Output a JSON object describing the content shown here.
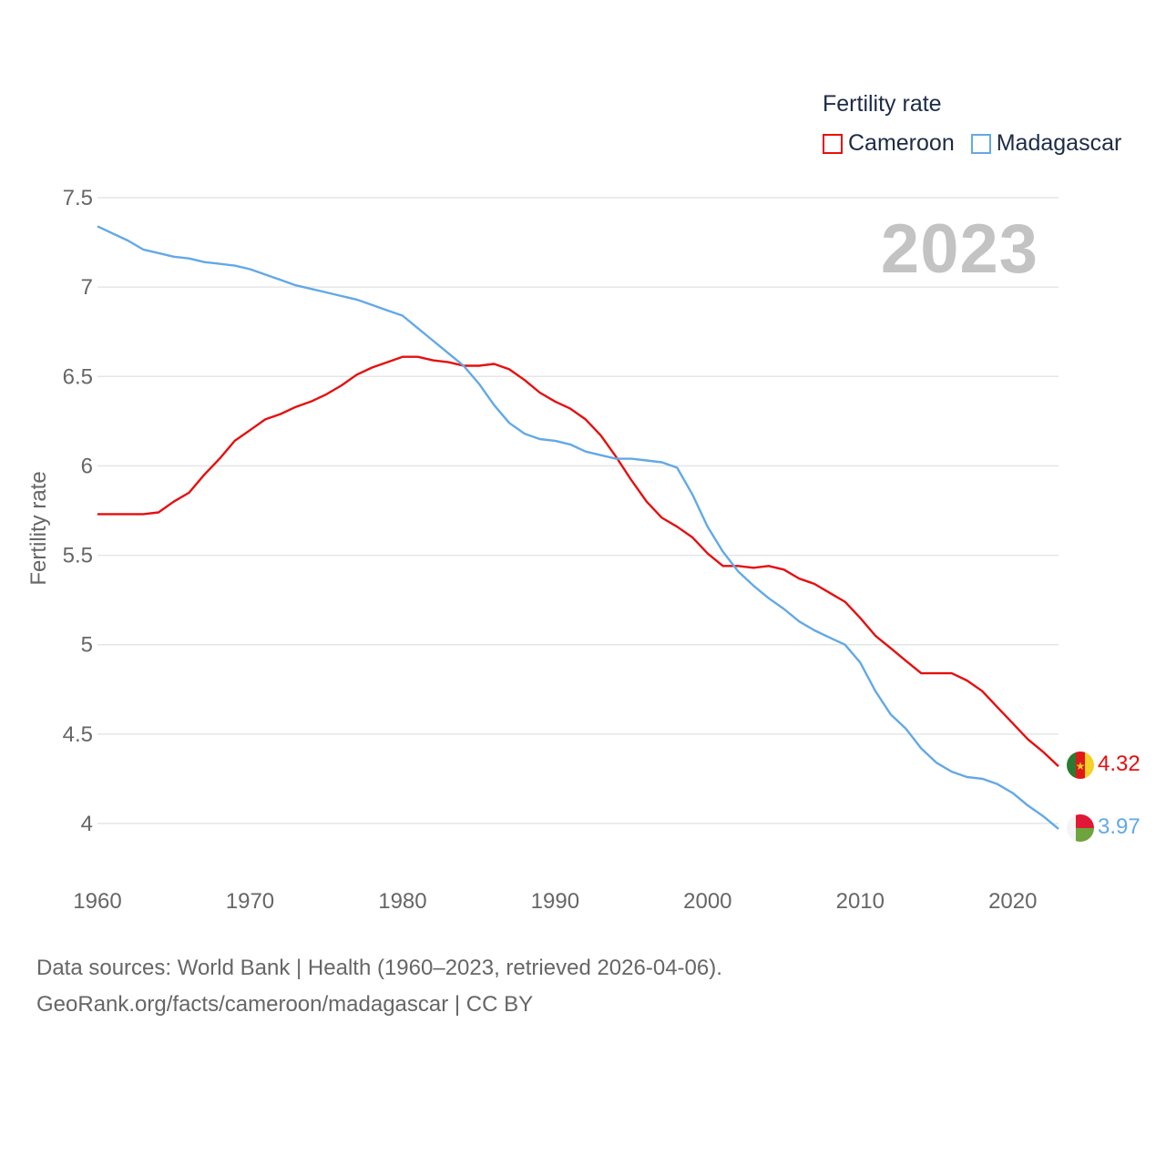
{
  "legend": {
    "title": "Fertility rate",
    "items": [
      {
        "label": "Cameroon",
        "color": "#e60f0f"
      },
      {
        "label": "Madagascar",
        "color": "#62a9e6"
      }
    ]
  },
  "year_label": "2023",
  "footer": {
    "line1": "Data sources: World Bank | Health (1960–2023, retrieved 2026-04-06).",
    "line2": "GeoRank.org/facts/cameroon/madagascar | CC BY"
  },
  "chart_data": {
    "type": "line",
    "title": "Fertility rate",
    "xlabel": "",
    "ylabel": "Fertility rate",
    "xlim": [
      1960,
      2023
    ],
    "ylim": [
      3.8,
      7.6
    ],
    "xticks": [
      "1960",
      "1970",
      "1980",
      "1990",
      "2000",
      "2010",
      "2020"
    ],
    "yticks": [
      "4",
      "4.5",
      "5",
      "5.5",
      "6",
      "6.5",
      "7",
      "7.5"
    ],
    "grid": true,
    "legend_position": "top-right",
    "x": [
      1960,
      1961,
      1962,
      1963,
      1964,
      1965,
      1966,
      1967,
      1968,
      1969,
      1970,
      1971,
      1972,
      1973,
      1974,
      1975,
      1976,
      1977,
      1978,
      1979,
      1980,
      1981,
      1982,
      1983,
      1984,
      1985,
      1986,
      1987,
      1988,
      1989,
      1990,
      1991,
      1992,
      1993,
      1994,
      1995,
      1996,
      1997,
      1998,
      1999,
      2000,
      2001,
      2002,
      2003,
      2004,
      2005,
      2006,
      2007,
      2008,
      2009,
      2010,
      2011,
      2012,
      2013,
      2014,
      2015,
      2016,
      2017,
      2018,
      2019,
      2020,
      2021,
      2022,
      2023
    ],
    "series": [
      {
        "name": "Cameroon",
        "color": "#e60f0f",
        "end_label": "4.32",
        "values": [
          5.73,
          5.73,
          5.73,
          5.73,
          5.74,
          5.8,
          5.85,
          5.95,
          6.04,
          6.14,
          6.2,
          6.26,
          6.29,
          6.33,
          6.36,
          6.4,
          6.45,
          6.51,
          6.55,
          6.58,
          6.61,
          6.61,
          6.59,
          6.58,
          6.56,
          6.56,
          6.57,
          6.54,
          6.48,
          6.41,
          6.36,
          6.32,
          6.26,
          6.17,
          6.05,
          5.92,
          5.8,
          5.71,
          5.66,
          5.6,
          5.51,
          5.44,
          5.44,
          5.43,
          5.44,
          5.42,
          5.37,
          5.34,
          5.29,
          5.24,
          5.15,
          5.05,
          4.98,
          4.91,
          4.84,
          4.84,
          4.84,
          4.8,
          4.74,
          4.65,
          4.56,
          4.47,
          4.4,
          4.32
        ]
      },
      {
        "name": "Madagascar",
        "color": "#62a9e6",
        "end_label": "3.97",
        "values": [
          7.34,
          7.3,
          7.26,
          7.21,
          7.19,
          7.17,
          7.16,
          7.14,
          7.13,
          7.12,
          7.1,
          7.07,
          7.04,
          7.01,
          6.99,
          6.97,
          6.95,
          6.93,
          6.9,
          6.87,
          6.84,
          6.77,
          6.7,
          6.63,
          6.56,
          6.46,
          6.34,
          6.24,
          6.18,
          6.15,
          6.14,
          6.12,
          6.08,
          6.06,
          6.04,
          6.04,
          6.03,
          6.02,
          5.99,
          5.84,
          5.66,
          5.52,
          5.41,
          5.33,
          5.26,
          5.2,
          5.13,
          5.08,
          5.04,
          5.0,
          4.9,
          4.74,
          4.61,
          4.53,
          4.42,
          4.34,
          4.29,
          4.26,
          4.25,
          4.22,
          4.17,
          4.1,
          4.04,
          3.97
        ]
      }
    ]
  }
}
